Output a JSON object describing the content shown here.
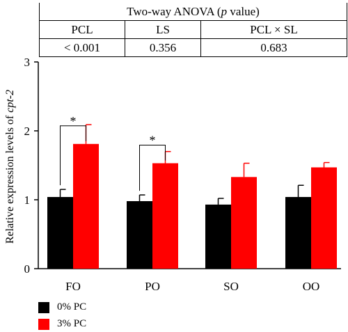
{
  "anova": {
    "title_pre": "Two-way ANOVA (",
    "title_ital": "p",
    "title_post": " value)",
    "headers": [
      "PCL",
      "LS",
      "PCL × SL"
    ],
    "values": [
      "< 0.001",
      "0.356",
      "0.683"
    ]
  },
  "chart_data": {
    "type": "bar",
    "categories": [
      "FO",
      "PO",
      "SO",
      "OO"
    ],
    "series": [
      {
        "name": "0% PC",
        "color": "#000000",
        "values": [
          1.04,
          0.98,
          0.93,
          1.04
        ],
        "errors": [
          0.11,
          0.09,
          0.09,
          0.17
        ]
      },
      {
        "name": "3% PC",
        "color": "#ff0000",
        "values": [
          1.81,
          1.53,
          1.33,
          1.47
        ],
        "errors": [
          0.28,
          0.17,
          0.2,
          0.07
        ]
      }
    ],
    "ylabel_pre": "Relative expression levels of ",
    "ylabel_ital": "cpt-2",
    "ylim": [
      0,
      3
    ],
    "yticks": [
      "0",
      "1",
      "2",
      "3"
    ],
    "significance": [
      {
        "category": "FO",
        "label": "*"
      },
      {
        "category": "PO",
        "label": "*"
      }
    ],
    "legend_position": "bottom-left"
  }
}
